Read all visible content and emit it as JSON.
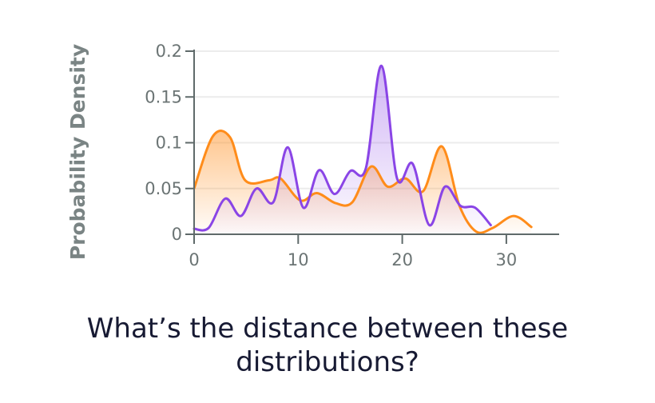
{
  "chart_data": {
    "type": "line",
    "title": "",
    "xlabel": "",
    "ylabel": "Probability Density",
    "xlim": [
      0,
      35
    ],
    "ylim": [
      0,
      0.2
    ],
    "xticks": [
      "0",
      "10",
      "20",
      "30"
    ],
    "yticks": [
      "0",
      "0.05",
      "0.1",
      "0.15",
      "0.2"
    ],
    "grid": true,
    "series": [
      {
        "name": "orange",
        "color": "#ff8c1a",
        "x": [
          0,
          1.8,
          3.45,
          4.9,
          7.2,
          8.3,
          10.2,
          11.8,
          13.6,
          15.2,
          17.0,
          18.6,
          20.3,
          22.0,
          23.8,
          25.5,
          27.1,
          28.7,
          30.7,
          32.4
        ],
        "y": [
          0.05,
          0.107,
          0.106,
          0.059,
          0.059,
          0.061,
          0.037,
          0.045,
          0.034,
          0.035,
          0.074,
          0.052,
          0.061,
          0.047,
          0.096,
          0.031,
          0.003,
          0.007,
          0.02,
          0.008
        ]
      },
      {
        "name": "purple",
        "color": "#8a45e6",
        "x": [
          0,
          1.4,
          3.0,
          4.5,
          6.0,
          7.6,
          9.0,
          10.5,
          12.0,
          13.5,
          15.0,
          16.5,
          18.0,
          19.5,
          21.0,
          22.6,
          24.1,
          25.6,
          27.0,
          28.5
        ],
        "y": [
          0.006,
          0.007,
          0.039,
          0.02,
          0.05,
          0.035,
          0.095,
          0.029,
          0.07,
          0.044,
          0.069,
          0.072,
          0.184,
          0.061,
          0.077,
          0.01,
          0.052,
          0.031,
          0.029,
          0.01
        ]
      }
    ]
  },
  "question": {
    "line1": "What’s the distance between these",
    "line2": "distributions?"
  }
}
